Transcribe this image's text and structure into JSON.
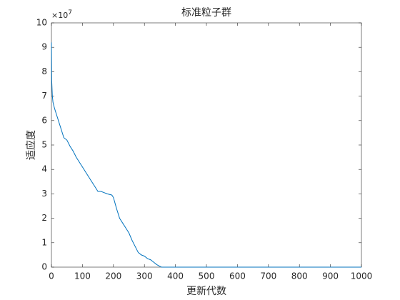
{
  "chart_data": {
    "type": "line",
    "title": "标准粒子群",
    "xlabel": "更新代数",
    "ylabel": "适应度",
    "y_multiplier_base": "×10",
    "y_multiplier_exp": "7",
    "x": [
      0,
      1,
      3,
      5,
      10,
      20,
      30,
      40,
      50,
      60,
      70,
      80,
      100,
      120,
      140,
      150,
      160,
      170,
      180,
      195,
      200,
      210,
      220,
      230,
      240,
      250,
      260,
      270,
      280,
      285,
      290,
      300,
      310,
      320,
      330,
      340,
      350,
      355,
      400,
      500,
      600,
      700,
      800,
      900,
      1000
    ],
    "series": [
      {
        "name": "fitness",
        "color": "#0072bd",
        "values": [
          9.2,
          7.6,
          7.0,
          6.75,
          6.5,
          6.1,
          5.7,
          5.3,
          5.2,
          4.95,
          4.75,
          4.5,
          4.1,
          3.7,
          3.3,
          3.1,
          3.1,
          3.05,
          3.0,
          2.95,
          2.85,
          2.4,
          2.0,
          1.8,
          1.6,
          1.4,
          1.1,
          0.85,
          0.6,
          0.55,
          0.5,
          0.45,
          0.35,
          0.3,
          0.2,
          0.1,
          0.03,
          0.0,
          0.0,
          0.0,
          0.0,
          0.0,
          0.0,
          0.0,
          0.0
        ]
      }
    ],
    "xlim": [
      0,
      1000
    ],
    "xticks": [
      0,
      100,
      200,
      300,
      400,
      500,
      600,
      700,
      800,
      900,
      1000
    ],
    "ylim": [
      0,
      10
    ],
    "yticks": [
      0,
      1,
      2,
      3,
      4,
      5,
      6,
      7,
      8,
      9,
      10
    ],
    "grid": false
  }
}
